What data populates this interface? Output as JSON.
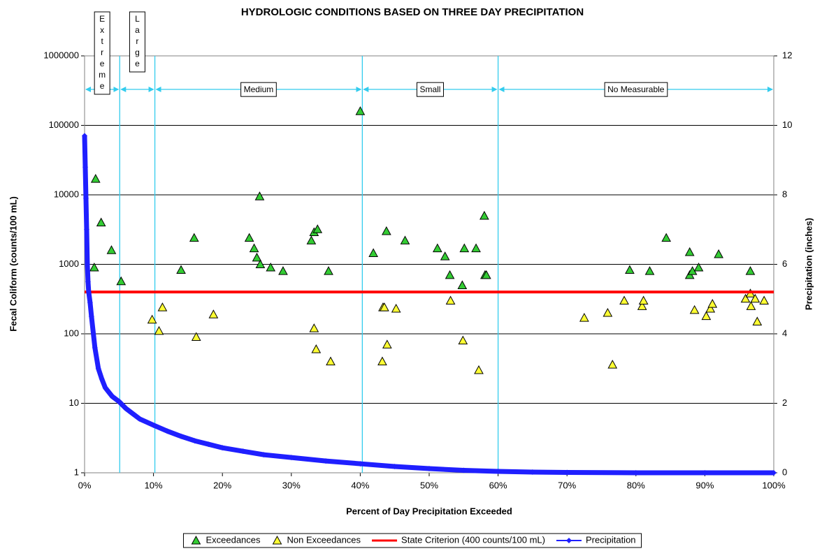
{
  "chart_data": {
    "type": "scatter",
    "title": "HYDROLOGIC CONDITIONS BASED ON THREE DAY PRECIPITATION",
    "x_label": "Percent of Day Precipitation Exceeded",
    "y_label": "Fecal Coliform (counts/100 mL)",
    "y2_label": "Precipitation (inches)",
    "xlim": [
      0,
      100
    ],
    "xticks": [
      {
        "value": 0,
        "label": "0%"
      },
      {
        "value": 10,
        "label": "10%"
      },
      {
        "value": 20,
        "label": "20%"
      },
      {
        "value": 30,
        "label": "30%"
      },
      {
        "value": 40,
        "label": "40%"
      },
      {
        "value": 50,
        "label": "50%"
      },
      {
        "value": 60,
        "label": "60%"
      },
      {
        "value": 70,
        "label": "70%"
      },
      {
        "value": 80,
        "label": "80%"
      },
      {
        "value": 90,
        "label": "90%"
      },
      {
        "value": 100,
        "label": "100%"
      }
    ],
    "ylim": [
      1,
      1000000
    ],
    "ylog": true,
    "yticks": [
      1,
      10,
      100,
      1000,
      10000,
      100000,
      1000000
    ],
    "y2lim": [
      0,
      12
    ],
    "y2ticks": [
      0,
      2,
      4,
      6,
      8,
      10,
      12
    ],
    "grid": true,
    "legend": "bottom",
    "zone_color": "#33ccee",
    "zones": [
      {
        "label": "Extreme",
        "start": 0,
        "end": 5.1
      },
      {
        "label": "Large",
        "start": 5.1,
        "end": 10.2
      },
      {
        "label": "Medium",
        "start": 10.2,
        "end": 40.3
      },
      {
        "label": "Small",
        "start": 40.3,
        "end": 60
      },
      {
        "label": "No Measurable",
        "start": 60,
        "end": 100
      }
    ],
    "series": [
      {
        "name": "Exceedances",
        "type": "scatter",
        "color": "#33cc33",
        "x": [
          1.6,
          2.4,
          1.4,
          3.9,
          5.3,
          14.0,
          15.9,
          23.9,
          24.6,
          25.0,
          25.4,
          25.5,
          27.0,
          28.8,
          32.9,
          33.3,
          33.8,
          35.4,
          40.0,
          41.9,
          43.8,
          46.5,
          51.2,
          52.3,
          53.0,
          54.8,
          55.1,
          56.8,
          58.0,
          58.1,
          58.3,
          79.1,
          82.0,
          84.4,
          87.8,
          87.8,
          88.2,
          89.1,
          92.0,
          96.6
        ],
        "values": [
          17000,
          4000,
          900,
          1600,
          570,
          830,
          2400,
          2400,
          1700,
          1250,
          9500,
          1000,
          900,
          800,
          2200,
          2900,
          3200,
          800,
          160000,
          1450,
          3000,
          2200,
          1700,
          1300,
          700,
          500,
          1700,
          1700,
          5000,
          700,
          700,
          830,
          800,
          2400,
          1500,
          700,
          800,
          900,
          1400,
          800
        ]
      },
      {
        "name": "Non Exceedances",
        "type": "scatter",
        "color": "#ffff33",
        "x": [
          9.8,
          10.8,
          11.3,
          16.2,
          18.7,
          33.3,
          33.6,
          35.7,
          43.2,
          43.3,
          43.5,
          43.9,
          45.2,
          53.1,
          54.9,
          57.2,
          72.5,
          75.9,
          76.6,
          78.3,
          80.9,
          81.1,
          88.5,
          90.2,
          90.8,
          91.1,
          95.9,
          96.6,
          96.7,
          97.3,
          97.6,
          98.6
        ],
        "values": [
          160,
          110,
          240,
          90,
          190,
          120,
          60,
          40,
          40,
          240,
          240,
          70,
          230,
          300,
          80,
          30,
          170,
          200,
          36,
          300,
          250,
          300,
          220,
          180,
          230,
          270,
          320,
          380,
          250,
          320,
          150,
          300
        ]
      },
      {
        "name": "State Criterion (400 counts/100 mL)",
        "type": "line",
        "color": "#ff0000",
        "x": [
          0,
          100
        ],
        "values": [
          400,
          400
        ]
      },
      {
        "name": "Precipitation",
        "type": "line-marker",
        "color": "#1f1fff",
        "axis": "y2",
        "x": [
          0,
          0.1,
          0.2,
          0.3,
          0.4,
          0.5,
          0.6,
          0.8,
          1,
          1.5,
          2,
          2.5,
          3,
          4,
          5,
          6,
          7,
          8,
          10,
          12,
          14,
          16,
          18,
          20,
          23,
          26,
          30,
          35,
          40,
          45,
          50,
          55,
          60,
          65,
          70,
          80,
          90,
          100
        ],
        "values": [
          9.7,
          8.8,
          7.9,
          7.0,
          6.0,
          5.5,
          5.2,
          4.9,
          4.5,
          3.6,
          3.0,
          2.7,
          2.45,
          2.2,
          2.05,
          1.85,
          1.7,
          1.55,
          1.37,
          1.2,
          1.05,
          0.92,
          0.82,
          0.72,
          0.62,
          0.52,
          0.44,
          0.34,
          0.26,
          0.18,
          0.12,
          0.07,
          0.04,
          0.02,
          0.01,
          0,
          0,
          0
        ]
      }
    ]
  }
}
